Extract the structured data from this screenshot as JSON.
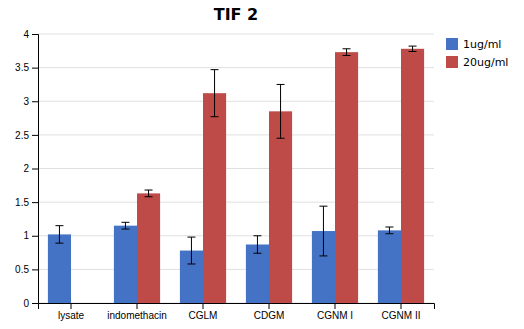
{
  "chart_data": {
    "type": "bar",
    "title": "TIF 2",
    "categories": [
      "lysate",
      "indomethacin",
      "CGLM",
      "CDGM",
      "CGNM I",
      "CGNM II"
    ],
    "series": [
      {
        "name": "1ug/ml",
        "color": "#4472C4",
        "values": [
          1.02,
          1.15,
          0.78,
          0.87,
          1.07,
          1.08
        ],
        "errors": [
          0.13,
          0.05,
          0.2,
          0.13,
          0.37,
          0.05
        ]
      },
      {
        "name": "20ug/ml",
        "color": "#BE4B48",
        "values": [
          null,
          1.63,
          3.12,
          2.85,
          3.73,
          3.78
        ],
        "errors": [
          null,
          0.05,
          0.35,
          0.4,
          0.05,
          0.04
        ]
      }
    ],
    "ylim": [
      0,
      4
    ],
    "yticks": [
      0,
      0.5,
      1,
      1.5,
      2,
      2.5,
      3,
      3.5,
      4
    ],
    "grid": true,
    "legend": "upper right"
  }
}
